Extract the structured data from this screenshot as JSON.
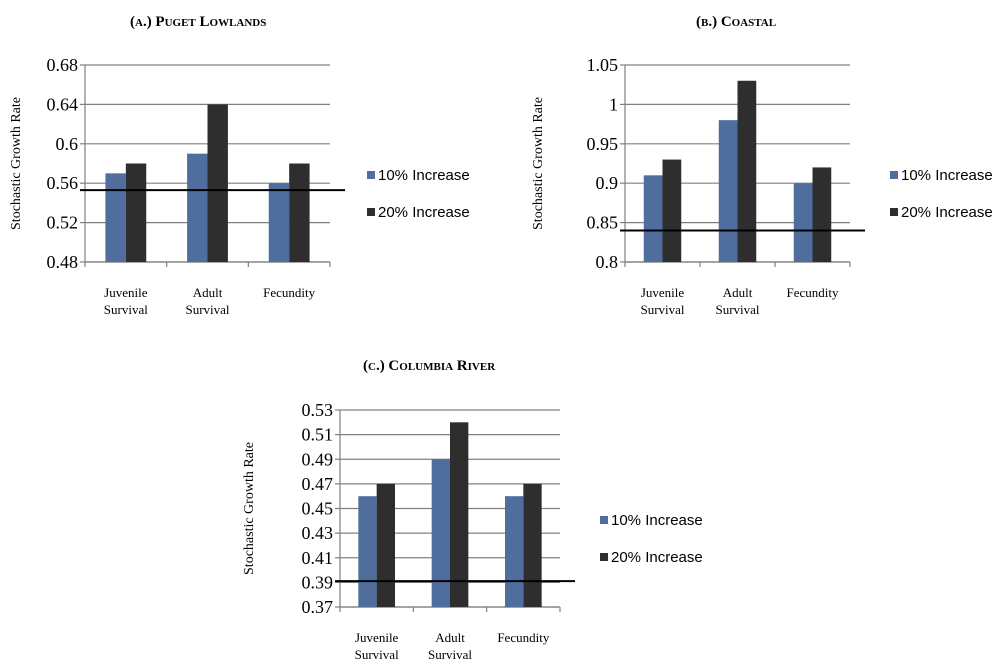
{
  "chart_data": [
    {
      "title": "(a.) Puget Lowlands",
      "type": "bar",
      "ylabel": "Stochastic Growth Rate",
      "xlabel": "",
      "categories": [
        [
          "Juvenile",
          "Survival"
        ],
        [
          "Adult",
          "Survival"
        ],
        [
          "Fecundity"
        ]
      ],
      "series": [
        {
          "name": "10% Increase",
          "color": "#4f6e9e",
          "values": [
            0.57,
            0.59,
            0.56
          ]
        },
        {
          "name": "20% Increase",
          "color": "#2e2e2e",
          "values": [
            0.58,
            0.64,
            0.58
          ]
        }
      ],
      "yticks": [
        "0.48",
        "0.52",
        "0.56",
        "0.6",
        "0.64",
        "0.68"
      ],
      "ylim": [
        0.48,
        0.68
      ],
      "baseline": 0.553,
      "grid": true,
      "legend": "right"
    },
    {
      "title": "(b.) Coastal",
      "type": "bar",
      "ylabel": "Stochastic Growth Rate",
      "xlabel": "",
      "categories": [
        [
          "Juvenile",
          "Survival"
        ],
        [
          "Adult",
          "Survival"
        ],
        [
          "Fecundity"
        ]
      ],
      "series": [
        {
          "name": "10% Increase",
          "color": "#4f6e9e",
          "values": [
            0.91,
            0.98,
            0.9
          ]
        },
        {
          "name": "20% Increase",
          "color": "#2e2e2e",
          "values": [
            0.93,
            1.03,
            0.92
          ]
        }
      ],
      "yticks": [
        "0.8",
        "0.85",
        "0.9",
        "0.95",
        "1",
        "1.05"
      ],
      "ylim": [
        0.8,
        1.05
      ],
      "baseline": 0.84,
      "grid": true,
      "legend": "right"
    },
    {
      "title": "(c.) Columbia River",
      "type": "bar",
      "ylabel": "Stochastic Growth Rate",
      "xlabel": "",
      "categories": [
        [
          "Juvenile",
          "Survival"
        ],
        [
          "Adult",
          "Survival"
        ],
        [
          "Fecundity"
        ]
      ],
      "series": [
        {
          "name": "10% Increase",
          "color": "#4f6e9e",
          "values": [
            0.46,
            0.49,
            0.46
          ]
        },
        {
          "name": "20% Increase",
          "color": "#2e2e2e",
          "values": [
            0.47,
            0.52,
            0.47
          ]
        }
      ],
      "yticks": [
        "0.37",
        "0.39",
        "0.41",
        "0.43",
        "0.45",
        "0.47",
        "0.49",
        "0.51",
        "0.53"
      ],
      "ylim": [
        0.37,
        0.53
      ],
      "baseline": 0.391,
      "grid": true,
      "legend": "right"
    }
  ]
}
